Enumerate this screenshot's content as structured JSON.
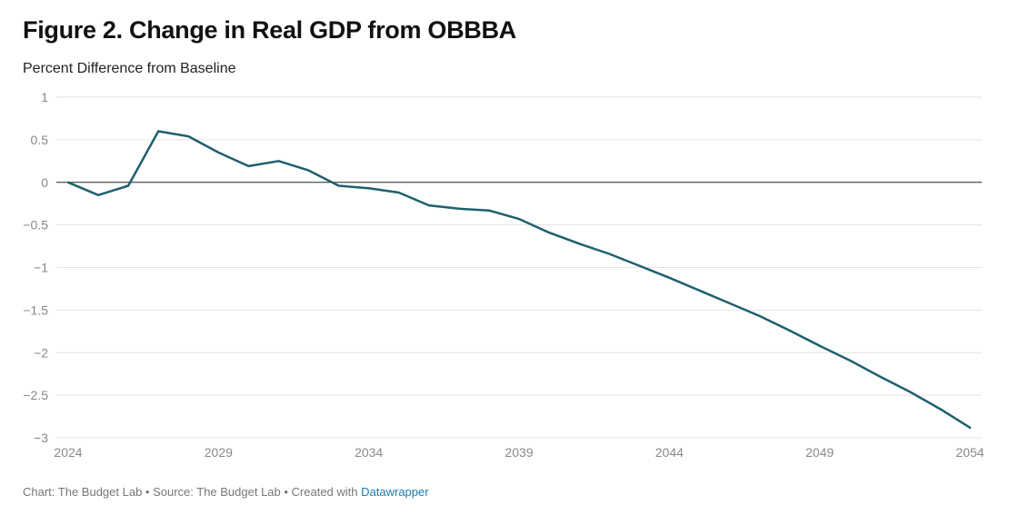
{
  "title": "Figure 2. Change in Real GDP from OBBBA",
  "subtitle": "Percent Difference from Baseline",
  "footer": {
    "prefix": "Chart: The Budget Lab • Source: The Budget Lab • Created with ",
    "link": "Datawrapper"
  },
  "colors": {
    "line": "#1f5f6e",
    "grid": "#e3e3e3",
    "zero": "#222222"
  },
  "chart_data": {
    "type": "line",
    "title": "Figure 2. Change in Real GDP from OBBBA",
    "ylabel": "Percent Difference from Baseline",
    "xlabel": "",
    "xlim": [
      2024,
      2054
    ],
    "ylim": [
      -3,
      1
    ],
    "grid": true,
    "x_ticks": [
      2024,
      2029,
      2034,
      2039,
      2044,
      2049,
      2054
    ],
    "x_tick_labels": [
      "2024",
      "2029",
      "2034",
      "2039",
      "2044",
      "2049",
      "2054"
    ],
    "y_ticks": [
      1,
      0.5,
      0,
      -0.5,
      -1,
      -1.5,
      -2,
      -2.5,
      -3
    ],
    "y_tick_labels": [
      "1",
      "0.5",
      "0",
      "−0.5",
      "−1",
      "−1.5",
      "−2",
      "−2.5",
      "−3"
    ],
    "series": [
      {
        "x": [
          2024,
          2025,
          2026,
          2027,
          2028,
          2029,
          2030,
          2031,
          2032,
          2033,
          2034,
          2035,
          2036,
          2037,
          2038,
          2039,
          2040,
          2041,
          2042,
          2043,
          2044,
          2045,
          2046,
          2047,
          2048,
          2049,
          2050,
          2051,
          2052,
          2053,
          2054
        ],
        "values": [
          0,
          -0.15,
          -0.04,
          0.6,
          0.54,
          0.35,
          0.19,
          0.25,
          0.14,
          -0.04,
          -0.07,
          -0.12,
          -0.27,
          -0.31,
          -0.33,
          -0.43,
          -0.59,
          -0.72,
          -0.84,
          -0.98,
          -1.12,
          -1.27,
          -1.42,
          -1.57,
          -1.74,
          -1.92,
          -2.09,
          -2.28,
          -2.46,
          -2.66,
          -2.88
        ]
      }
    ]
  }
}
